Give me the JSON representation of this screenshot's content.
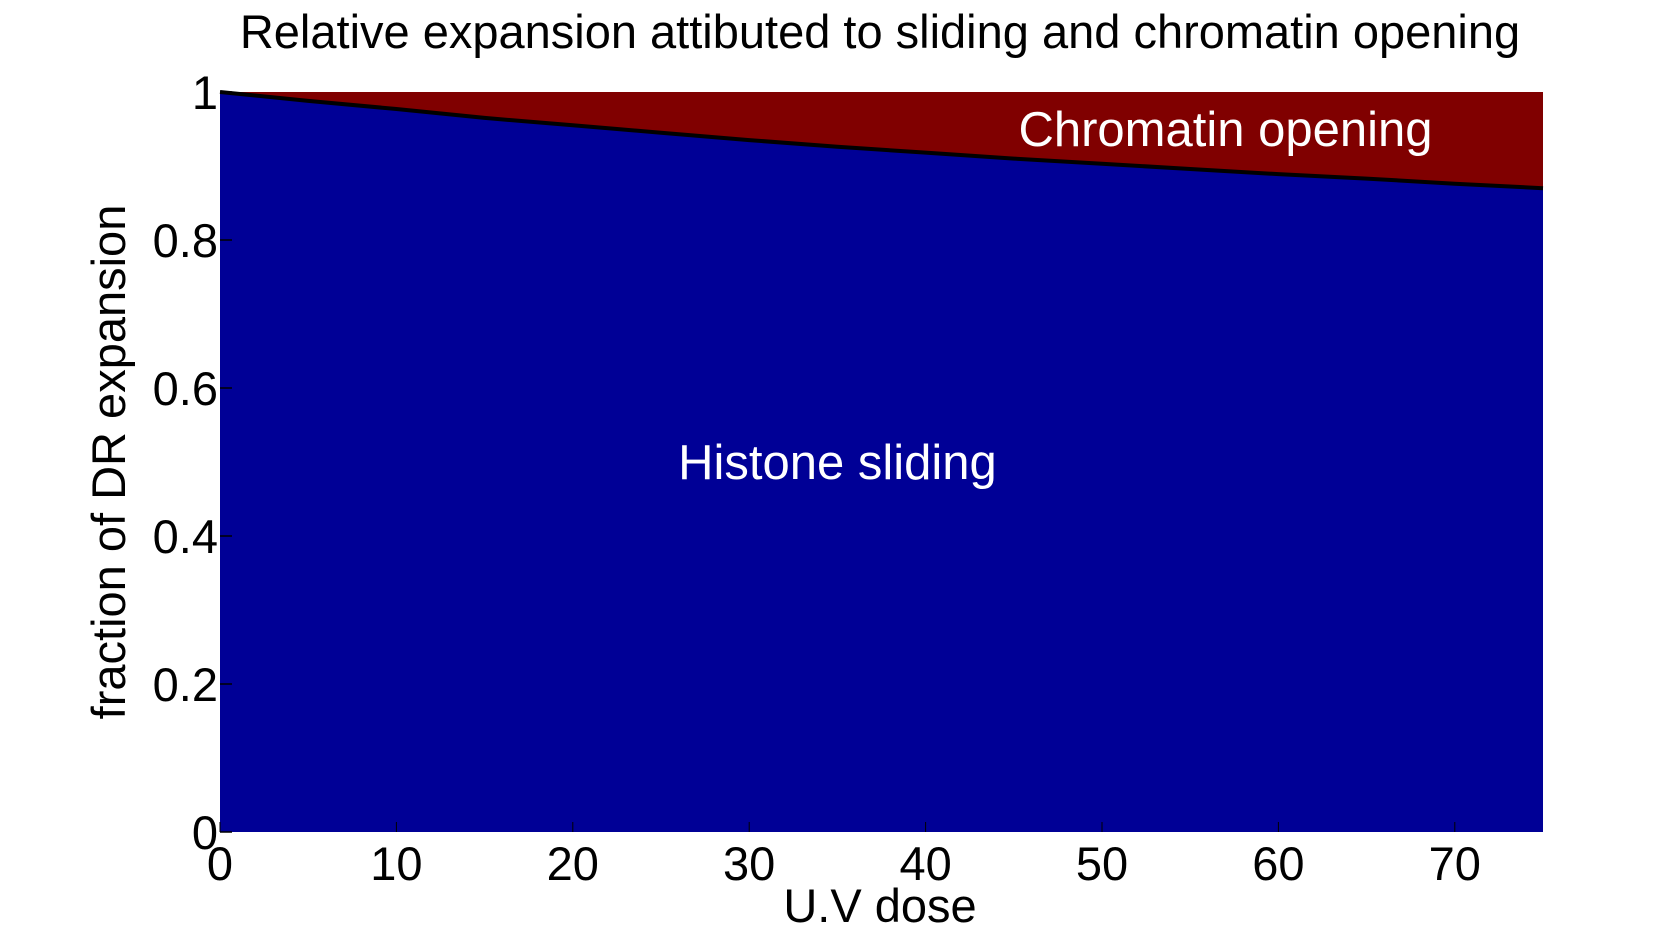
{
  "chart_data": {
    "type": "area",
    "title": "Relative expansion attibuted to sliding and chromatin opening",
    "xlabel": "U.V dose",
    "ylabel": "fraction of DR expansion",
    "xlim": [
      0,
      75
    ],
    "ylim": [
      0,
      1
    ],
    "x_ticks": [
      "0",
      "10",
      "20",
      "30",
      "40",
      "50",
      "60",
      "70"
    ],
    "y_ticks": [
      "0",
      "0.2",
      "0.4",
      "0.6",
      "0.8",
      "1"
    ],
    "grid": false,
    "stacked": true,
    "x": [
      0,
      5,
      10,
      15,
      20,
      25,
      30,
      35,
      40,
      45,
      50,
      55,
      60,
      65,
      70,
      75
    ],
    "series": [
      {
        "values": [
          1.0,
          0.988,
          0.977,
          0.965,
          0.955,
          0.945,
          0.935,
          0.926,
          0.918,
          0.91,
          0.903,
          0.896,
          0.889,
          0.883,
          0.876,
          0.87
        ],
        "color": "#000096"
      },
      {
        "values": [
          0.0,
          0.012,
          0.023,
          0.035,
          0.045,
          0.055,
          0.065,
          0.074,
          0.082,
          0.09,
          0.097,
          0.104,
          0.111,
          0.117,
          0.124,
          0.13
        ],
        "color": "#800000"
      }
    ],
    "annotations": [
      {
        "text": "Histone sliding",
        "x": 35,
        "y": 0.5
      },
      {
        "text": "Chromatin opening",
        "x": 57,
        "y": 0.95
      }
    ],
    "boundary_line_color": "#000000"
  }
}
